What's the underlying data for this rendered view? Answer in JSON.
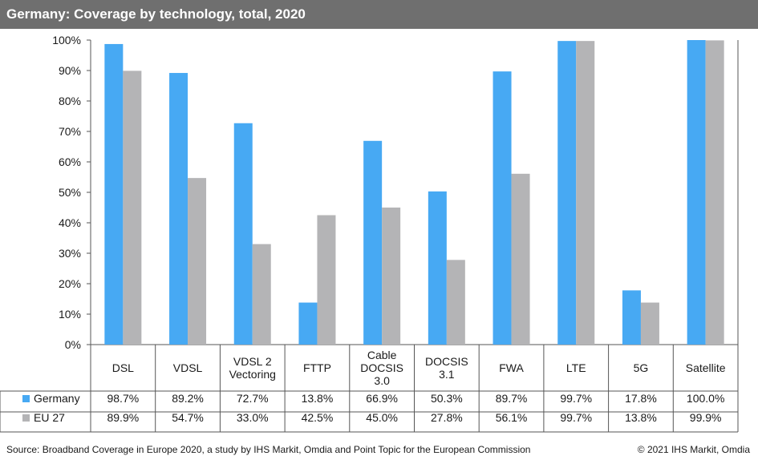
{
  "header": {
    "title": "Germany: Coverage by technology, total, 2020"
  },
  "footer": {
    "source": "Source: Broadband Coverage in Europe 2020, a study by IHS Markit, Omdia and Point Topic for the European Commission",
    "copyright": "© 2021 IHS Markit, Omdia"
  },
  "colors": {
    "germany": "#47a9f3",
    "eu27": "#b4b4b6",
    "title_bg": "#6f6f6f"
  },
  "chart_data": {
    "type": "bar",
    "title": "Germany: Coverage by technology, total, 2020",
    "xlabel": "",
    "ylabel": "",
    "ylim": [
      0,
      100
    ],
    "yticks": [
      "0%",
      "10%",
      "20%",
      "30%",
      "40%",
      "50%",
      "60%",
      "70%",
      "80%",
      "90%",
      "100%"
    ],
    "categories": [
      [
        "DSL"
      ],
      [
        "VDSL"
      ],
      [
        "VDSL 2",
        "Vectoring"
      ],
      [
        "FTTP"
      ],
      [
        "Cable",
        "DOCSIS",
        "3.0"
      ],
      [
        "DOCSIS",
        "3.1"
      ],
      [
        "FWA"
      ],
      [
        "LTE"
      ],
      [
        "5G"
      ],
      [
        "Satellite"
      ]
    ],
    "series": [
      {
        "name": "Germany",
        "color": "#47a9f3",
        "values": [
          98.7,
          89.2,
          72.7,
          13.8,
          66.9,
          50.3,
          89.7,
          99.7,
          17.8,
          100.0
        ],
        "labels": [
          "98.7%",
          "89.2%",
          "72.7%",
          "13.8%",
          "66.9%",
          "50.3%",
          "89.7%",
          "99.7%",
          "17.8%",
          "100.0%"
        ]
      },
      {
        "name": "EU 27",
        "color": "#b4b4b6",
        "values": [
          89.9,
          54.7,
          33.0,
          42.5,
          45.0,
          27.8,
          56.1,
          99.7,
          13.8,
          99.9
        ],
        "labels": [
          "89.9%",
          "54.7%",
          "33.0%",
          "42.5%",
          "45.0%",
          "27.8%",
          "56.1%",
          "99.7%",
          "13.8%",
          "99.9%"
        ]
      }
    ],
    "grid": false,
    "legend": "data-table"
  }
}
